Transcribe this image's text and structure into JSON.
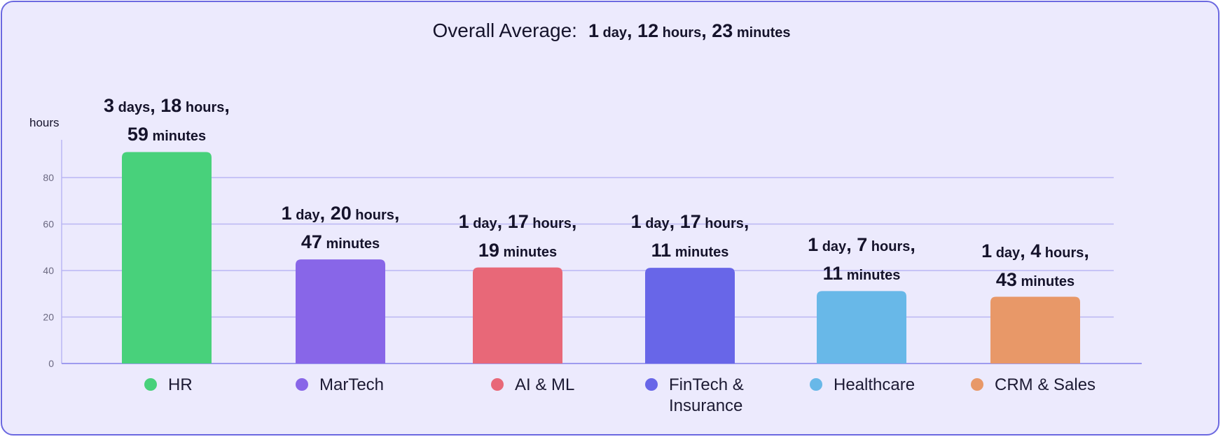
{
  "header": {
    "label": "Overall Average:",
    "parts": [
      {
        "num": "1",
        "unit": "day",
        "sep": ","
      },
      {
        "num": "12",
        "unit": "hours",
        "sep": ","
      },
      {
        "num": "23",
        "unit": "minutes",
        "sep": ""
      }
    ]
  },
  "chart_data": {
    "type": "bar",
    "ylabel": "hours",
    "ylim": [
      0,
      96
    ],
    "yticks": [
      0,
      20,
      40,
      60,
      80
    ],
    "grid": true,
    "categories": [
      "HR",
      "MarTech",
      "AI & ML",
      "FinTech & Insurance",
      "Healthcare",
      "CRM & Sales"
    ],
    "legend_labels": [
      "HR",
      "MarTech",
      "AI & ML",
      "FinTech &\nInsurance",
      "Healthcare",
      "CRM & Sales"
    ],
    "values": [
      90.98,
      44.78,
      41.32,
      41.18,
      31.18,
      28.72
    ],
    "colors": [
      "#48d17b",
      "#8866e8",
      "#e86878",
      "#6866e8",
      "#68b8e8",
      "#e89868"
    ],
    "data_labels": [
      [
        [
          {
            "num": "3",
            "unit": "days",
            "sep": ","
          },
          {
            "num": "18",
            "unit": "hours",
            "sep": ","
          }
        ],
        [
          {
            "num": "59",
            "unit": "minutes",
            "sep": ""
          }
        ]
      ],
      [
        [
          {
            "num": "1",
            "unit": "day",
            "sep": ","
          },
          {
            "num": "20",
            "unit": "hours",
            "sep": ","
          }
        ],
        [
          {
            "num": "47",
            "unit": "minutes",
            "sep": ""
          }
        ]
      ],
      [
        [
          {
            "num": "1",
            "unit": "day",
            "sep": ","
          },
          {
            "num": "17",
            "unit": "hours",
            "sep": ","
          }
        ],
        [
          {
            "num": "19",
            "unit": "minutes",
            "sep": ""
          }
        ]
      ],
      [
        [
          {
            "num": "1",
            "unit": "day",
            "sep": ","
          },
          {
            "num": "17",
            "unit": "hours",
            "sep": ","
          }
        ],
        [
          {
            "num": "11",
            "unit": "minutes",
            "sep": ""
          }
        ]
      ],
      [
        [
          {
            "num": "1",
            "unit": "day",
            "sep": ","
          },
          {
            "num": "7",
            "unit": "hours",
            "sep": ","
          }
        ],
        [
          {
            "num": "11",
            "unit": "minutes",
            "sep": ""
          }
        ]
      ],
      [
        [
          {
            "num": "1",
            "unit": "day",
            "sep": ","
          },
          {
            "num": "4",
            "unit": "hours",
            "sep": ","
          }
        ],
        [
          {
            "num": "43",
            "unit": "minutes",
            "sep": ""
          }
        ]
      ]
    ]
  }
}
